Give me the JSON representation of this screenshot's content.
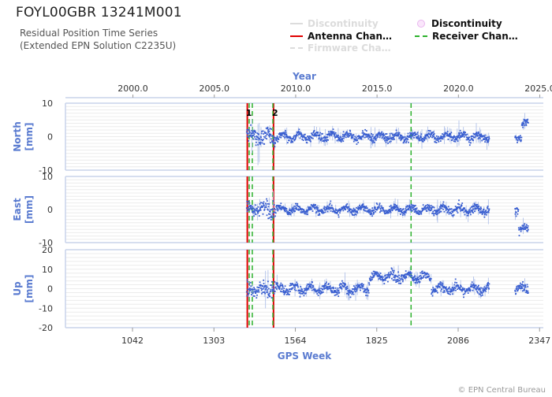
{
  "header": {
    "title": "FOYL00GBR 13241M001",
    "subtitle_line1": "Residual Position Time Series",
    "subtitle_line2": "(Extended EPN Solution C2235U)"
  },
  "legend": [
    {
      "label": "Discontinuity",
      "style": "line",
      "color": "#dcdcdc",
      "faded": true
    },
    {
      "label": "Antenna Chan…",
      "style": "line",
      "color": "#e00000",
      "faded": false
    },
    {
      "label": "Firmware Cha…",
      "style": "dashed",
      "color": "#dcdcdc",
      "faded": true
    },
    {
      "label": "Discontinuity",
      "style": "dot",
      "color": "#f3c4f5",
      "faded": false
    },
    {
      "label": "Receiver Chan…",
      "style": "dashed",
      "color": "#2cb22c",
      "faded": false
    }
  ],
  "copyright": "© EPN Central Bureau",
  "chart_data": {
    "type": "scatter",
    "top_axis": {
      "label": "Year",
      "ticks": [
        "2000.0",
        "2005.0",
        "2010.0",
        "2015.0",
        "2020.0",
        "2025.0"
      ]
    },
    "x": {
      "label": "GPS Week",
      "ticks": [
        "1042",
        "1303",
        "1564",
        "1825",
        "2086",
        "2347"
      ],
      "range": [
        827,
        2359
      ]
    },
    "event_labels": [
      "1",
      "2"
    ],
    "panels": [
      {
        "name": "North",
        "unit": "[mm]",
        "ylim": [
          -10,
          10
        ],
        "yticks": [
          "10",
          "0",
          "-10"
        ]
      },
      {
        "name": "East",
        "unit": "[mm]",
        "ylim": [
          -10,
          10
        ],
        "yticks": [
          "10",
          "0",
          "-10"
        ]
      },
      {
        "name": "Up",
        "unit": "[mm]",
        "ylim": [
          -20,
          20
        ],
        "yticks": [
          "20",
          "10",
          "0",
          "-10",
          "-20"
        ]
      }
    ],
    "events": {
      "antenna_changes": [
        1410,
        1494
      ],
      "receiver_changes": [
        1416,
        1426,
        1492,
        1935
      ]
    },
    "data_span": {
      "start_week": 1408,
      "end_week": 2311,
      "gap": [
        2186,
        2268
      ]
    },
    "grid": true,
    "series_color": "#3a5fd0"
  }
}
